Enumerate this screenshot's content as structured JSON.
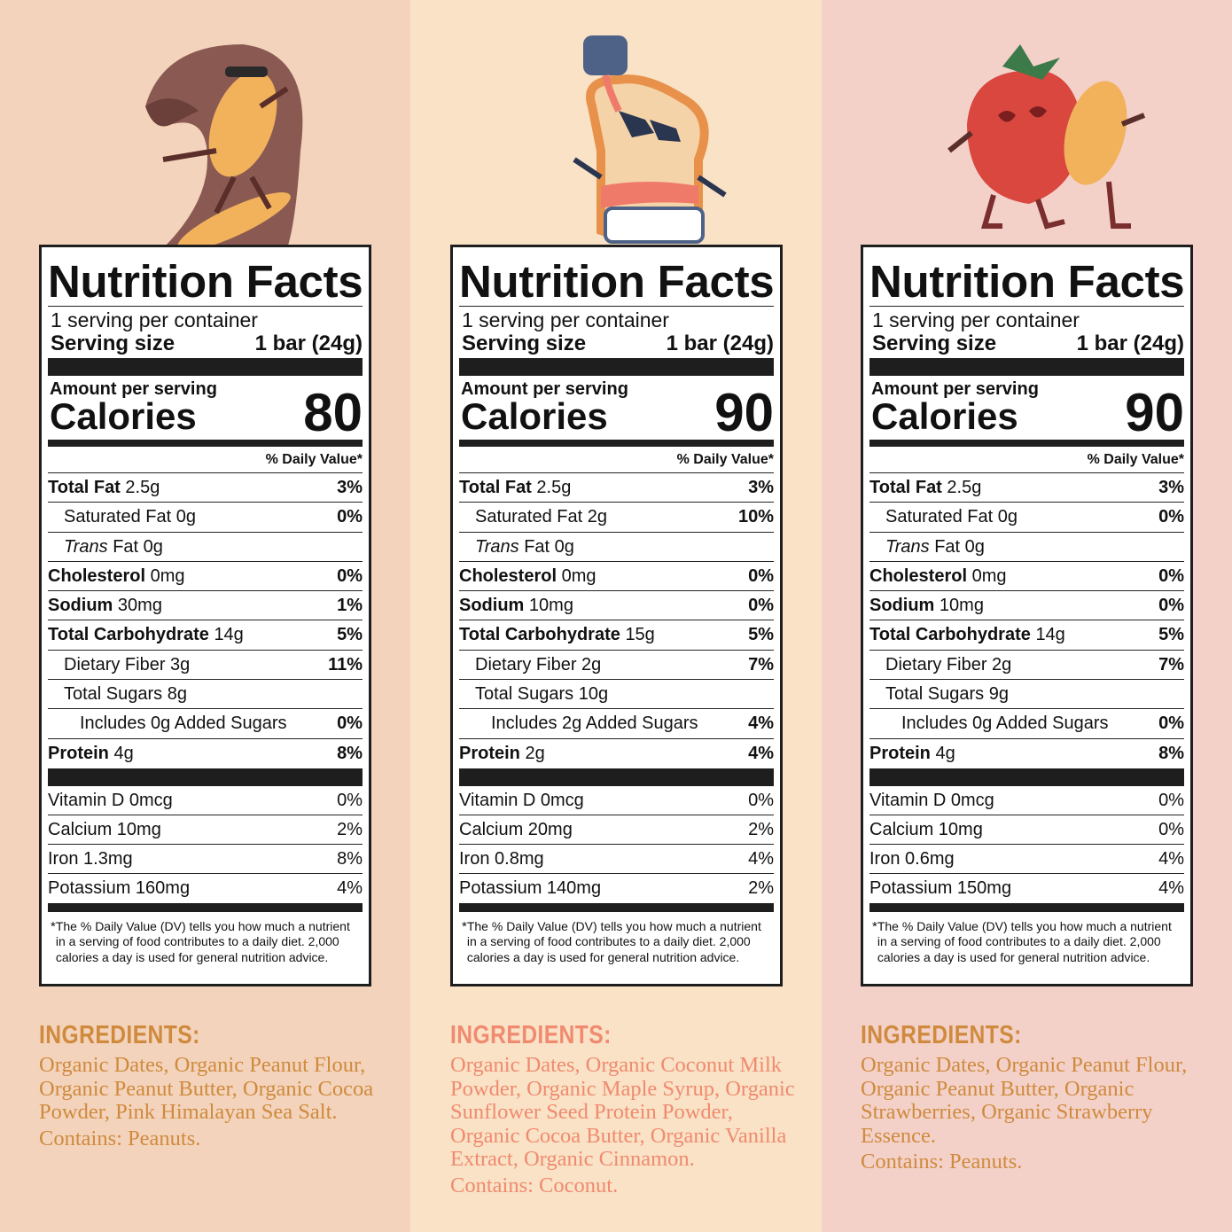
{
  "colors": {
    "panel_backgrounds": [
      "#f3d3bb",
      "#f9e2c5",
      "#f3d1c9"
    ],
    "ingredient_colors": [
      "#cf8a3d",
      "#f08a70",
      "#cf8a3d"
    ]
  },
  "panels": [
    {
      "illustration": "peanut-surfing-chocolate-wave-icon",
      "title": "Nutrition Facts",
      "servings": "1 serving per container",
      "serving_label": "Serving size",
      "serving_size": "1 bar (24g)",
      "amount_label": "Amount per serving",
      "calories_label": "Calories",
      "calories": "80",
      "dv_label": "% Daily Value*",
      "nutrients": [
        {
          "name": "Total Fat",
          "amount": "2.5g",
          "pct": "3%",
          "bold": true,
          "indent": 0
        },
        {
          "name": "Saturated Fat",
          "amount": "0g",
          "pct": "0%",
          "bold": false,
          "indent": 1
        },
        {
          "name": "Trans",
          "name2": "Fat",
          "amount": "0g",
          "pct": "",
          "bold": false,
          "indent": 1,
          "italic": true
        },
        {
          "name": "Cholesterol",
          "amount": "0mg",
          "pct": "0%",
          "bold": true,
          "indent": 0
        },
        {
          "name": "Sodium",
          "amount": "30mg",
          "pct": "1%",
          "bold": true,
          "indent": 0
        },
        {
          "name": "Total Carbohydrate",
          "amount": "14g",
          "pct": "5%",
          "bold": true,
          "indent": 0
        },
        {
          "name": "Dietary Fiber",
          "amount": "3g",
          "pct": "11%",
          "bold": false,
          "indent": 1
        },
        {
          "name": "Total Sugars",
          "amount": "8g",
          "pct": "",
          "bold": false,
          "indent": 1
        },
        {
          "name": "Includes 0g Added Sugars",
          "amount": "",
          "pct": "0%",
          "bold": false,
          "indent": 2
        },
        {
          "name": "Protein",
          "amount": "4g",
          "pct": "8%",
          "bold": true,
          "indent": 0
        }
      ],
      "vitamins": [
        {
          "name": "Vitamin D 0mcg",
          "pct": "0%"
        },
        {
          "name": "Calcium 10mg",
          "pct": "2%"
        },
        {
          "name": "Iron 1.3mg",
          "pct": "8%"
        },
        {
          "name": "Potassium 160mg",
          "pct": "4%"
        }
      ],
      "footnote": "The % Daily Value (DV) tells you how much a nutrient in a serving of food contributes to a daily diet. 2,000 calories a day is used for general nutrition advice.",
      "ingredients_heading": "INGREDIENTS:",
      "ingredients": "Organic Dates, Organic Peanut Flour, Organic Peanut Butter, Organic Cocoa Powder, Pink Himalayan Sea Salt.",
      "contains": "Contains: Peanuts."
    },
    {
      "illustration": "toast-with-maple-syrup-icon",
      "title": "Nutrition Facts",
      "servings": "1 serving per container",
      "serving_label": "Serving size",
      "serving_size": "1 bar (24g)",
      "amount_label": "Amount per serving",
      "calories_label": "Calories",
      "calories": "90",
      "dv_label": "% Daily Value*",
      "nutrients": [
        {
          "name": "Total Fat",
          "amount": "2.5g",
          "pct": "3%",
          "bold": true,
          "indent": 0
        },
        {
          "name": "Saturated Fat",
          "amount": "2g",
          "pct": "10%",
          "bold": false,
          "indent": 1
        },
        {
          "name": "Trans",
          "name2": "Fat",
          "amount": "0g",
          "pct": "",
          "bold": false,
          "indent": 1,
          "italic": true
        },
        {
          "name": "Cholesterol",
          "amount": "0mg",
          "pct": "0%",
          "bold": true,
          "indent": 0
        },
        {
          "name": "Sodium",
          "amount": "10mg",
          "pct": "0%",
          "bold": true,
          "indent": 0
        },
        {
          "name": "Total Carbohydrate",
          "amount": "15g",
          "pct": "5%",
          "bold": true,
          "indent": 0
        },
        {
          "name": "Dietary Fiber",
          "amount": "2g",
          "pct": "7%",
          "bold": false,
          "indent": 1
        },
        {
          "name": "Total Sugars",
          "amount": "10g",
          "pct": "",
          "bold": false,
          "indent": 1
        },
        {
          "name": "Includes 2g Added Sugars",
          "amount": "",
          "pct": "4%",
          "bold": false,
          "indent": 2
        },
        {
          "name": "Protein",
          "amount": "2g",
          "pct": "4%",
          "bold": true,
          "indent": 0
        }
      ],
      "vitamins": [
        {
          "name": "Vitamin D 0mcg",
          "pct": "0%"
        },
        {
          "name": "Calcium 20mg",
          "pct": "2%"
        },
        {
          "name": "Iron 0.8mg",
          "pct": "4%"
        },
        {
          "name": "Potassium 140mg",
          "pct": "2%"
        }
      ],
      "footnote": "The % Daily Value (DV) tells you how much a nutrient in a serving of food contributes to a daily diet. 2,000 calories a day is used for general nutrition advice.",
      "ingredients_heading": "INGREDIENTS:",
      "ingredients": "Organic Dates, Organic Coconut Milk Powder, Organic Maple Syrup, Organic Sunflower Seed Protein Powder, Organic Cocoa Butter, Organic Vanilla Extract, Organic Cinnamon.",
      "contains": "Contains: Coconut."
    },
    {
      "illustration": "strawberry-and-peanut-jumping-icon",
      "title": "Nutrition Facts",
      "servings": "1 serving per container",
      "serving_label": "Serving size",
      "serving_size": "1 bar (24g)",
      "amount_label": "Amount per serving",
      "calories_label": "Calories",
      "calories": "90",
      "dv_label": "% Daily Value*",
      "nutrients": [
        {
          "name": "Total Fat",
          "amount": "2.5g",
          "pct": "3%",
          "bold": true,
          "indent": 0
        },
        {
          "name": "Saturated Fat",
          "amount": "0g",
          "pct": "0%",
          "bold": false,
          "indent": 1
        },
        {
          "name": "Trans",
          "name2": "Fat",
          "amount": "0g",
          "pct": "",
          "bold": false,
          "indent": 1,
          "italic": true
        },
        {
          "name": "Cholesterol",
          "amount": "0mg",
          "pct": "0%",
          "bold": true,
          "indent": 0
        },
        {
          "name": "Sodium",
          "amount": "10mg",
          "pct": "0%",
          "bold": true,
          "indent": 0
        },
        {
          "name": "Total Carbohydrate",
          "amount": "14g",
          "pct": "5%",
          "bold": true,
          "indent": 0
        },
        {
          "name": "Dietary Fiber",
          "amount": "2g",
          "pct": "7%",
          "bold": false,
          "indent": 1
        },
        {
          "name": "Total Sugars",
          "amount": "9g",
          "pct": "",
          "bold": false,
          "indent": 1
        },
        {
          "name": "Includes 0g Added Sugars",
          "amount": "",
          "pct": "0%",
          "bold": false,
          "indent": 2
        },
        {
          "name": "Protein",
          "amount": "4g",
          "pct": "8%",
          "bold": true,
          "indent": 0
        }
      ],
      "vitamins": [
        {
          "name": "Vitamin D 0mcg",
          "pct": "0%"
        },
        {
          "name": "Calcium 10mg",
          "pct": "0%"
        },
        {
          "name": "Iron 0.6mg",
          "pct": "4%"
        },
        {
          "name": "Potassium 150mg",
          "pct": "4%"
        }
      ],
      "footnote": "The % Daily Value (DV) tells you how much a nutrient in a serving of food contributes to a daily diet. 2,000 calories a day is used for general nutrition advice.",
      "ingredients_heading": "INGREDIENTS:",
      "ingredients": "Organic Dates, Organic Peanut Flour, Organic Peanut Butter, Organic Strawberries, Organic Strawberry Essence.",
      "contains": "Contains: Peanuts."
    }
  ]
}
